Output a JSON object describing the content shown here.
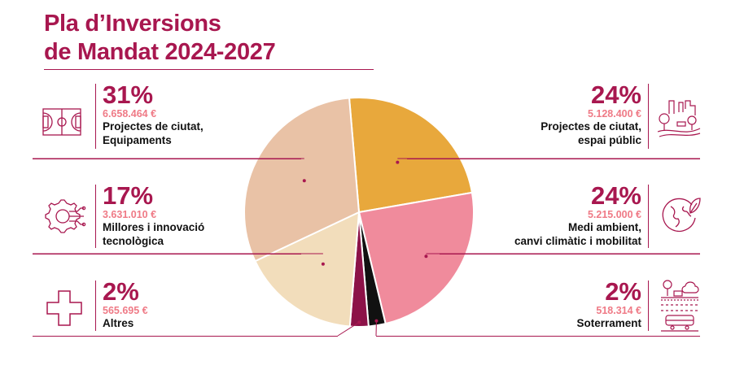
{
  "title_line1": "Pla d’Inversions",
  "title_line2": "de Mandat 2024-2027",
  "blocks": {
    "ciutat_equipaments": {
      "pct": "31%",
      "amount": "6.658.464 €",
      "label1": "Projectes de ciutat,",
      "label2": "Equipaments",
      "icon": "sports-court-icon"
    },
    "millores": {
      "pct": "17%",
      "amount": "3.631.010 €",
      "label1": "Millores i innovació",
      "label2": "tecnològica",
      "icon": "gear-circuit-icon"
    },
    "altres": {
      "pct": "2%",
      "amount": "565.695 €",
      "label1": "Altres",
      "icon": "plus-icon"
    },
    "espai_public": {
      "pct": "24%",
      "amount": "5.128.400 €",
      "label1": "Projectes de ciutat,",
      "label2": "espai públic",
      "icon": "city-park-icon"
    },
    "medi_ambient": {
      "pct": "24%",
      "amount": "5.215.000 €",
      "label1": "Medi ambient,",
      "label2": "canvi climàtic i mobilitat",
      "icon": "earth-leaf-icon"
    },
    "soterrament": {
      "pct": "2%",
      "amount": "518.314 €",
      "label1": "Soterrament",
      "icon": "train-tunnel-icon"
    }
  },
  "colors": {
    "brand": "#a8174f",
    "amount": "#ef7a86"
  },
  "chart_data": {
    "type": "pie",
    "slices": [
      {
        "label": "Projectes de ciutat, espai públic",
        "value": 5128400,
        "color": "#e8a83c"
      },
      {
        "label": "Medi ambient, canvi climàtic i mobilitat",
        "value": 5215000,
        "color": "#f08b9c"
      },
      {
        "label": "Soterrament",
        "value": 518314,
        "color": "#111111"
      },
      {
        "label": "Altres",
        "value": 565695,
        "color": "#8c1248"
      },
      {
        "label": "Millores i innovació tecnològica",
        "value": 3631010,
        "color": "#f2ddbb"
      },
      {
        "label": "Projectes de ciutat, Equipaments",
        "value": 6658464,
        "color": "#e9c2a6"
      }
    ]
  }
}
